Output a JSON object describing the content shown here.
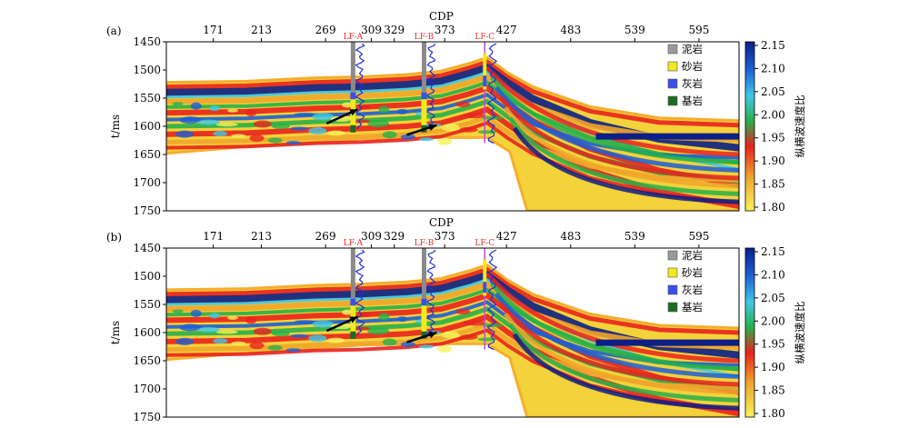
{
  "chart_data": [
    {
      "type": "heatmap",
      "panel_label": "(a)",
      "xlabel": "CDP",
      "ylabel": "t/ms",
      "xticks": [
        171,
        213,
        269,
        309,
        329,
        373,
        427,
        483,
        539,
        595
      ],
      "yticks": [
        1450,
        1500,
        1550,
        1600,
        1650,
        1700,
        1750
      ],
      "ylim": [
        1450,
        1750
      ],
      "xlim": [
        130,
        630
      ],
      "colorbar": {
        "label": "纵横波速度比",
        "ticks": [
          "2.15",
          "2.10",
          "2.05",
          "2.00",
          "1.95",
          "1.90",
          "1.85",
          "1.80"
        ],
        "range": [
          1.8,
          2.15
        ],
        "colors": [
          "#0b1f86",
          "#1c5fd6",
          "#3fc8e6",
          "#27b04a",
          "#e8231e",
          "#f0a52b",
          "#f7f25a"
        ]
      },
      "wells": [
        {
          "name": "LF-A",
          "cdp": 293
        },
        {
          "name": "LF-B",
          "cdp": 355
        },
        {
          "name": "LF-C",
          "cdp": 408
        }
      ],
      "legend": [
        "泥岩",
        "砂岩",
        "灰岩",
        "基岩"
      ],
      "legend_colors": [
        "#9a9a9a",
        "#f1ea1f",
        "#3b4ee8",
        "#1d6a22"
      ],
      "arrows": 2
    },
    {
      "type": "heatmap",
      "panel_label": "(b)",
      "xlabel": "CDP",
      "ylabel": "t/ms",
      "xticks": [
        171,
        213,
        269,
        309,
        329,
        373,
        427,
        483,
        539,
        595
      ],
      "yticks": [
        1450,
        1500,
        1550,
        1600,
        1650,
        1700,
        1750
      ],
      "ylim": [
        1450,
        1750
      ],
      "xlim": [
        130,
        630
      ],
      "colorbar": {
        "label": "纵横波速度比",
        "ticks": [
          "2.15",
          "2.10",
          "2.05",
          "2.00",
          "1.95",
          "1.90",
          "1.85",
          "1.80"
        ],
        "range": [
          1.8,
          2.15
        ],
        "colors": [
          "#0b1f86",
          "#1c5fd6",
          "#3fc8e6",
          "#27b04a",
          "#e8231e",
          "#f0a52b",
          "#f7f25a"
        ]
      },
      "wells": [
        {
          "name": "LF-A",
          "cdp": 293
        },
        {
          "name": "LF-B",
          "cdp": 355
        },
        {
          "name": "LF-C",
          "cdp": 408
        }
      ],
      "legend": [
        "泥岩",
        "砂岩",
        "灰岩",
        "基岩"
      ],
      "legend_colors": [
        "#9a9a9a",
        "#f1ea1f",
        "#3b4ee8",
        "#1d6a22"
      ],
      "arrows": 2
    }
  ]
}
